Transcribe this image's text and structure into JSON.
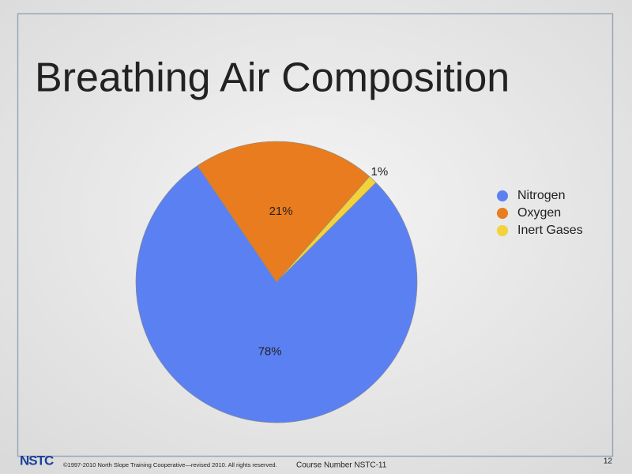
{
  "chart_data": {
    "type": "pie",
    "title": "Breathing Air Composition",
    "categories": [
      "Nitrogen",
      "Oxygen",
      "Inert Gases"
    ],
    "values": [
      78,
      21,
      1
    ],
    "value_labels": [
      "78%",
      "21%",
      "1%"
    ],
    "colors": [
      "#5b80f2",
      "#e87c1e",
      "#f3d23a"
    ],
    "startangle": 45,
    "legend": "right"
  },
  "footer": {
    "logo": "NSTC",
    "copyright": "©1997-2010 North Slope Training Cooperative—revised 2010. All rights reserved.",
    "course": "Course Number NSTC-11",
    "page": "12"
  }
}
